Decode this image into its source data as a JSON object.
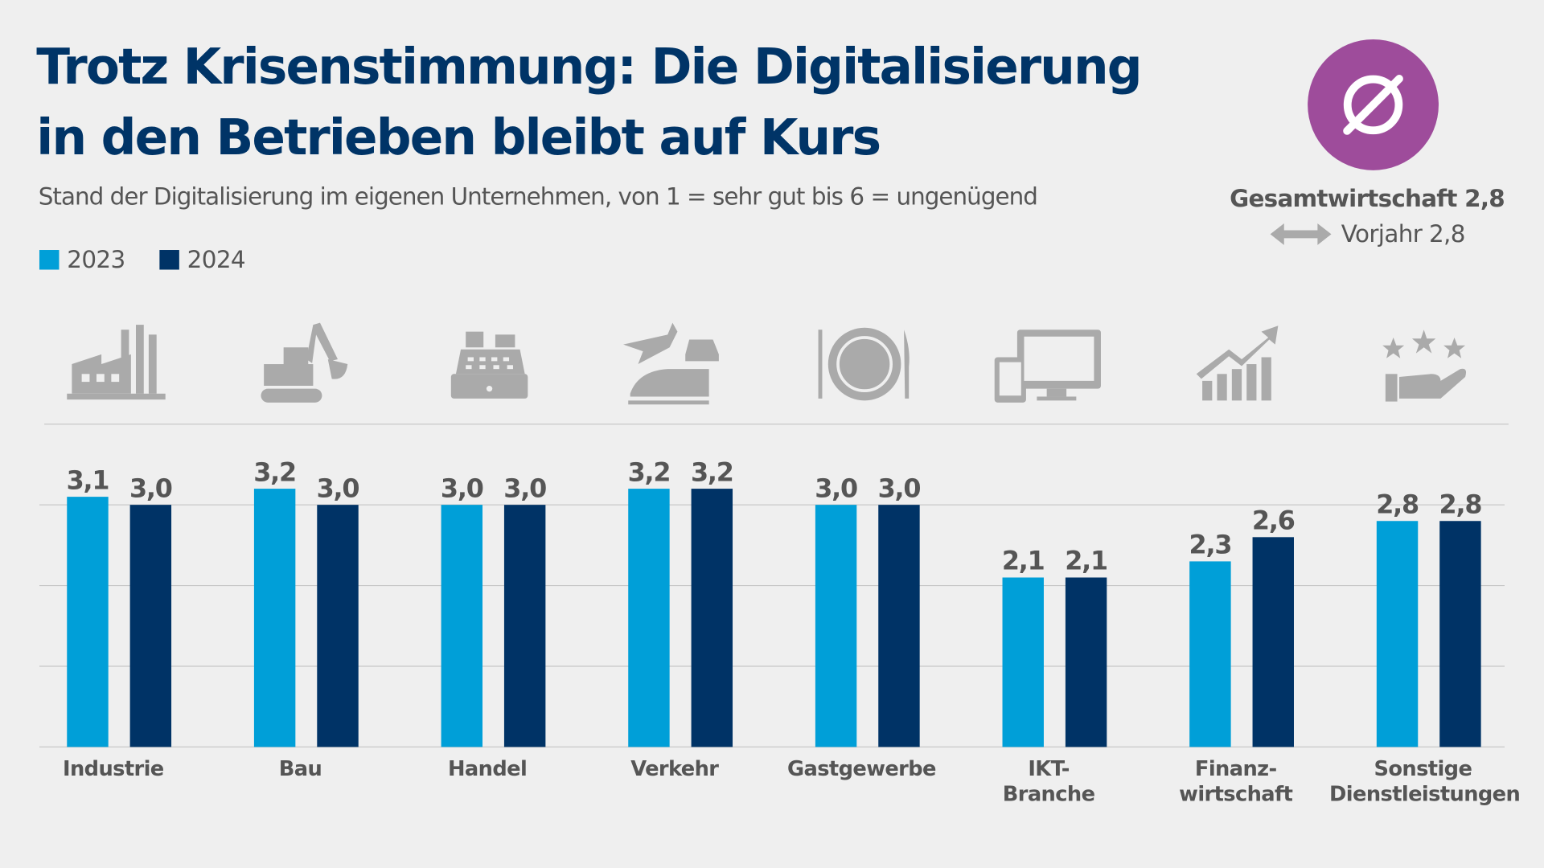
{
  "title_line1": "Trotz Krisenstimmung: Die Digitalisierung",
  "title_line2": "in den Betrieben bleibt auf Kurs",
  "subtitle": "Stand der Digitalisierung im eigenen Unternehmen,  von 1 = sehr gut bis 6 = ungenügend",
  "average": {
    "icon": "average-diameter-icon",
    "label": "Gesamtwirtschaft 2,8",
    "previous_label": "Vorjahr 2,8",
    "trend_icon": "double-arrow-icon",
    "badge_color": "#9e4c9b"
  },
  "chart_data": {
    "type": "bar",
    "categories": [
      "Industrie",
      "Bau",
      "Handel",
      "Verkehr",
      "Gastgewerbe",
      "IKT-\nBranche",
      "Finanz-\nwirtschaft",
      "Sonstige\nDienstleistungen"
    ],
    "category_icons": [
      "factory-icon",
      "excavator-icon",
      "cash-register-icon",
      "plane-train-car-icon",
      "plate-cutlery-icon",
      "tablet-monitor-icon",
      "growth-chart-icon",
      "stars-hand-icon"
    ],
    "series": [
      {
        "name": "2023",
        "color": "#009fd8",
        "values": [
          3.1,
          3.2,
          3.0,
          3.2,
          3.0,
          2.1,
          2.3,
          2.8
        ],
        "labels": [
          "3,1",
          "3,2",
          "3,0",
          "3,2",
          "3,0",
          "2,1",
          "2,3",
          "2,8"
        ]
      },
      {
        "name": "2024",
        "color": "#003366",
        "values": [
          3.0,
          3.0,
          3.0,
          3.2,
          3.0,
          2.1,
          2.6,
          2.8
        ],
        "labels": [
          "3,0",
          "3,0",
          "3,0",
          "3,2",
          "3,0",
          "2,1",
          "2,6",
          "2,8"
        ]
      }
    ],
    "ylim": [
      0,
      4
    ],
    "grid": true,
    "legend_position": "top-left"
  }
}
